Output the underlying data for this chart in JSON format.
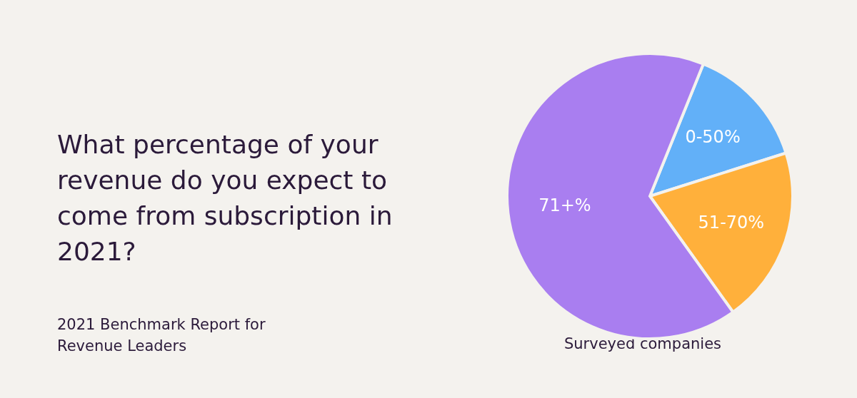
{
  "chart_data": {
    "type": "pie",
    "title": "What percentage of your revenue do you expect to come from subscription in 2021?",
    "categories": [
      "0-50%",
      "51-70%",
      "71+%"
    ],
    "values": [
      14,
      20,
      66
    ],
    "colors": [
      "#62b0f8",
      "#ffb03b",
      "#a97ef0"
    ],
    "legend": false,
    "annotations": [
      "2021 Benchmark Report for Revenue Leaders",
      "Surveyed companies"
    ]
  }
}
